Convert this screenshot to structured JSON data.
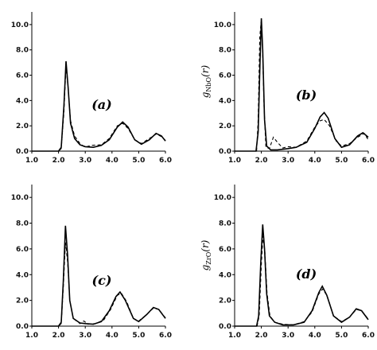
{
  "chart_data": [
    {
      "type": "line",
      "panel_label": "(a)",
      "ylabel": "",
      "xlim": [
        1.0,
        6.0
      ],
      "ylim": [
        0,
        11
      ],
      "x_ticks": [
        "1.0",
        "2.0",
        "3.0",
        "4.0",
        "5.0",
        "6.0"
      ],
      "y_ticks": [
        "0.0",
        "2.0",
        "4.0",
        "6.0",
        "8.0",
        "10.0"
      ],
      "series": [
        {
          "style": "solid",
          "points": [
            [
              1.0,
              0
            ],
            [
              2.0,
              0
            ],
            [
              2.1,
              0.3
            ],
            [
              2.2,
              3.5
            ],
            [
              2.28,
              7.1
            ],
            [
              2.36,
              5.0
            ],
            [
              2.45,
              2.2
            ],
            [
              2.6,
              1.0
            ],
            [
              2.8,
              0.5
            ],
            [
              3.0,
              0.35
            ],
            [
              3.3,
              0.3
            ],
            [
              3.6,
              0.45
            ],
            [
              3.9,
              0.9
            ],
            [
              4.2,
              1.9
            ],
            [
              4.4,
              2.3
            ],
            [
              4.6,
              1.9
            ],
            [
              4.85,
              0.9
            ],
            [
              5.1,
              0.55
            ],
            [
              5.4,
              0.9
            ],
            [
              5.65,
              1.4
            ],
            [
              5.85,
              1.2
            ],
            [
              6.0,
              0.8
            ]
          ]
        },
        {
          "style": "dashed",
          "points": [
            [
              1.0,
              0
            ],
            [
              2.0,
              0
            ],
            [
              2.1,
              0.2
            ],
            [
              2.2,
              3.0
            ],
            [
              2.28,
              6.7
            ],
            [
              2.36,
              5.0
            ],
            [
              2.45,
              2.4
            ],
            [
              2.6,
              1.2
            ],
            [
              2.8,
              0.6
            ],
            [
              3.0,
              0.3
            ],
            [
              3.2,
              0.45
            ],
            [
              3.6,
              0.5
            ],
            [
              3.9,
              1.0
            ],
            [
              4.2,
              2.0
            ],
            [
              4.4,
              2.2
            ],
            [
              4.6,
              1.8
            ],
            [
              4.85,
              0.9
            ],
            [
              5.1,
              0.6
            ],
            [
              5.4,
              1.0
            ],
            [
              5.65,
              1.35
            ],
            [
              5.85,
              1.15
            ],
            [
              6.0,
              0.85
            ]
          ]
        }
      ]
    },
    {
      "type": "line",
      "panel_label": "(b)",
      "ylabel": "g",
      "ylabel_sub": "NbO",
      "ylabel_tail": "(r)",
      "xlim": [
        1.0,
        6.0
      ],
      "ylim": [
        0,
        11
      ],
      "x_ticks": [
        "1.0",
        "2.0",
        "3.0",
        "4.0",
        "5.0",
        "6.0"
      ],
      "y_ticks": [
        "0.0",
        "2.0",
        "4.0",
        "6.0",
        "8.0",
        "10.0"
      ],
      "series": [
        {
          "style": "solid",
          "points": [
            [
              1.0,
              0
            ],
            [
              1.8,
              0
            ],
            [
              1.88,
              1.5
            ],
            [
              1.95,
              7.0
            ],
            [
              2.0,
              10.5
            ],
            [
              2.05,
              8.0
            ],
            [
              2.12,
              2.5
            ],
            [
              2.2,
              0.4
            ],
            [
              2.35,
              0.1
            ],
            [
              2.6,
              0.1
            ],
            [
              3.0,
              0.2
            ],
            [
              3.3,
              0.3
            ],
            [
              3.7,
              0.7
            ],
            [
              4.0,
              1.8
            ],
            [
              4.2,
              2.7
            ],
            [
              4.35,
              3.05
            ],
            [
              4.5,
              2.6
            ],
            [
              4.75,
              1.0
            ],
            [
              5.0,
              0.3
            ],
            [
              5.3,
              0.5
            ],
            [
              5.6,
              1.2
            ],
            [
              5.8,
              1.45
            ],
            [
              6.0,
              1.1
            ]
          ]
        },
        {
          "style": "dashed",
          "points": [
            [
              1.0,
              0
            ],
            [
              1.82,
              0
            ],
            [
              1.88,
              2.5
            ],
            [
              1.94,
              9.0
            ],
            [
              1.99,
              10.2
            ],
            [
              2.04,
              8.5
            ],
            [
              2.1,
              3.5
            ],
            [
              2.17,
              0.3
            ],
            [
              2.3,
              0.2
            ],
            [
              2.45,
              1.1
            ],
            [
              2.6,
              0.7
            ],
            [
              2.8,
              0.25
            ],
            [
              3.0,
              0.35
            ],
            [
              3.3,
              0.3
            ],
            [
              3.7,
              0.8
            ],
            [
              4.0,
              1.9
            ],
            [
              4.2,
              2.4
            ],
            [
              4.35,
              2.5
            ],
            [
              4.55,
              2.0
            ],
            [
              4.8,
              0.8
            ],
            [
              5.0,
              0.4
            ],
            [
              5.3,
              0.6
            ],
            [
              5.6,
              1.1
            ],
            [
              5.85,
              1.4
            ],
            [
              6.0,
              0.9
            ]
          ]
        }
      ]
    },
    {
      "type": "line",
      "panel_label": "(c)",
      "ylabel": "",
      "xlim": [
        1.0,
        6.0
      ],
      "ylim": [
        0,
        11
      ],
      "x_ticks": [
        "1.0",
        "2.0",
        "3.0",
        "4.0",
        "5.0",
        "6.0"
      ],
      "y_ticks": [
        "0.0",
        "2.0",
        "4.0",
        "6.0",
        "8.0",
        "10.0"
      ],
      "series": [
        {
          "style": "solid",
          "points": [
            [
              1.0,
              0
            ],
            [
              2.0,
              0
            ],
            [
              2.1,
              0.3
            ],
            [
              2.18,
              3.5
            ],
            [
              2.26,
              7.8
            ],
            [
              2.34,
              5.5
            ],
            [
              2.42,
              2.0
            ],
            [
              2.55,
              0.6
            ],
            [
              2.8,
              0.25
            ],
            [
              3.0,
              0.2
            ],
            [
              3.3,
              0.15
            ],
            [
              3.6,
              0.35
            ],
            [
              3.9,
              1.2
            ],
            [
              4.15,
              2.3
            ],
            [
              4.3,
              2.65
            ],
            [
              4.5,
              2.0
            ],
            [
              4.8,
              0.6
            ],
            [
              5.0,
              0.35
            ],
            [
              5.3,
              0.9
            ],
            [
              5.55,
              1.45
            ],
            [
              5.75,
              1.3
            ],
            [
              6.0,
              0.6
            ]
          ]
        },
        {
          "style": "dashed",
          "points": [
            [
              1.0,
              0
            ],
            [
              2.0,
              0
            ],
            [
              2.1,
              0.2
            ],
            [
              2.18,
              3.0
            ],
            [
              2.26,
              6.5
            ],
            [
              2.34,
              5.0
            ],
            [
              2.42,
              2.0
            ],
            [
              2.55,
              0.6
            ],
            [
              2.8,
              0.2
            ],
            [
              2.95,
              0.4
            ],
            [
              3.1,
              0.15
            ],
            [
              3.4,
              0.2
            ],
            [
              3.7,
              0.5
            ],
            [
              3.95,
              1.3
            ],
            [
              4.2,
              2.4
            ],
            [
              4.35,
              2.55
            ],
            [
              4.55,
              1.9
            ],
            [
              4.8,
              0.6
            ],
            [
              5.0,
              0.4
            ],
            [
              5.3,
              0.9
            ],
            [
              5.55,
              1.4
            ],
            [
              5.75,
              1.3
            ],
            [
              6.0,
              0.65
            ]
          ]
        }
      ]
    },
    {
      "type": "line",
      "panel_label": "(d)",
      "ylabel": "g",
      "ylabel_sub": "ZrO",
      "ylabel_tail": "(r)",
      "xlim": [
        1.0,
        6.0
      ],
      "ylim": [
        0,
        11
      ],
      "x_ticks": [
        "1.0",
        "2.0",
        "3.0",
        "4.0",
        "5.0",
        "6.0"
      ],
      "y_ticks": [
        "0.0",
        "2.0",
        "4.0",
        "6.0",
        "8.0",
        "10.0"
      ],
      "series": [
        {
          "style": "solid",
          "points": [
            [
              1.0,
              0
            ],
            [
              1.82,
              0
            ],
            [
              1.9,
              0.8
            ],
            [
              1.98,
              5.0
            ],
            [
              2.05,
              7.9
            ],
            [
              2.12,
              6.0
            ],
            [
              2.2,
              2.5
            ],
            [
              2.3,
              0.8
            ],
            [
              2.5,
              0.3
            ],
            [
              2.8,
              0.1
            ],
            [
              3.2,
              0.1
            ],
            [
              3.6,
              0.3
            ],
            [
              3.9,
              1.2
            ],
            [
              4.15,
              2.6
            ],
            [
              4.28,
              3.1
            ],
            [
              4.45,
              2.4
            ],
            [
              4.7,
              0.8
            ],
            [
              5.0,
              0.3
            ],
            [
              5.3,
              0.7
            ],
            [
              5.55,
              1.35
            ],
            [
              5.75,
              1.2
            ],
            [
              6.0,
              0.5
            ]
          ]
        },
        {
          "style": "dashed",
          "points": [
            [
              1.0,
              0
            ],
            [
              1.84,
              0
            ],
            [
              1.92,
              0.8
            ],
            [
              2.0,
              4.8
            ],
            [
              2.06,
              7.0
            ],
            [
              2.13,
              5.8
            ],
            [
              2.21,
              2.6
            ],
            [
              2.32,
              0.8
            ],
            [
              2.5,
              0.3
            ],
            [
              2.8,
              0.15
            ],
            [
              3.2,
              0.1
            ],
            [
              3.6,
              0.35
            ],
            [
              3.9,
              1.1
            ],
            [
              4.15,
              2.5
            ],
            [
              4.3,
              2.9
            ],
            [
              4.47,
              2.3
            ],
            [
              4.7,
              0.8
            ],
            [
              5.0,
              0.35
            ],
            [
              5.3,
              0.7
            ],
            [
              5.55,
              1.3
            ],
            [
              5.75,
              1.2
            ],
            [
              6.0,
              0.55
            ]
          ]
        }
      ]
    }
  ]
}
